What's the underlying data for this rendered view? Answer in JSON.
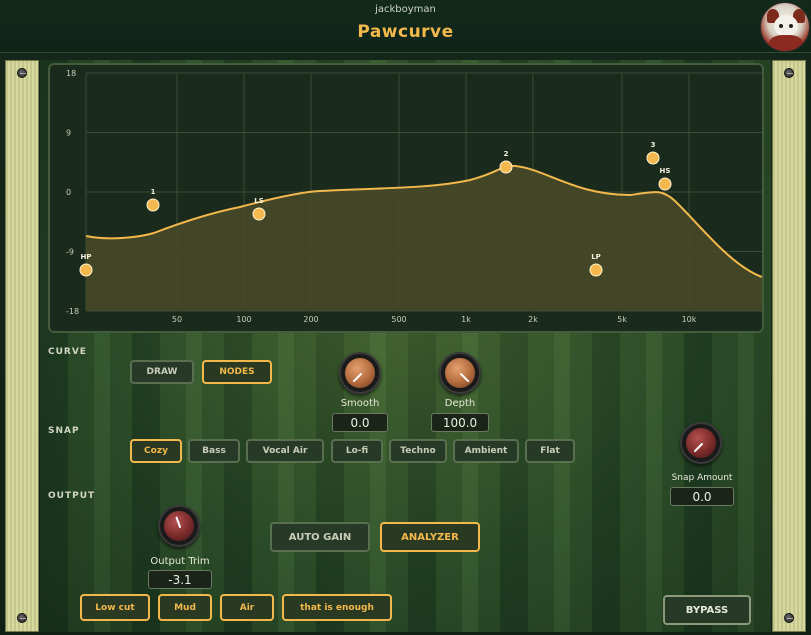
{
  "header": {
    "brand": "jackboyman",
    "title": "Pawcurve"
  },
  "eq": {
    "y_ticks": [
      "18",
      "9",
      "0",
      "-9",
      "-18"
    ],
    "x_ticks": [
      "50",
      "100",
      "200",
      "500",
      "1k",
      "2k",
      "5k",
      "10k"
    ],
    "nodes": [
      {
        "label": "HP"
      },
      {
        "label": "1"
      },
      {
        "label": "LS"
      },
      {
        "label": "2"
      },
      {
        "label": "LP"
      },
      {
        "label": "3"
      },
      {
        "label": "HS"
      }
    ],
    "colors": {
      "curve": "#f2b84b",
      "fill": "#4a4a28",
      "node": "#f5b84e"
    }
  },
  "sections": {
    "curve": "CURVE",
    "snap": "SNAP",
    "output": "OUTPUT"
  },
  "curve_mode": {
    "draw": "DRAW",
    "nodes": "NODES"
  },
  "smooth": {
    "label": "Smooth",
    "value": "0.0"
  },
  "depth": {
    "label": "Depth",
    "value": "100.0"
  },
  "snap_presets": [
    "Cozy",
    "Bass",
    "Vocal Air",
    "Lo-fi",
    "Techno",
    "Ambient",
    "Flat"
  ],
  "snap_amount": {
    "label": "Snap Amount",
    "value": "0.0"
  },
  "output_trim": {
    "label": "Output Trim",
    "value": "-3.1"
  },
  "toggles": {
    "auto_gain": "AUTO GAIN",
    "analyzer": "ANALYZER"
  },
  "quick_fixes": [
    "Low cut",
    "Mud",
    "Air",
    "that is enough"
  ],
  "bypass": "BYPASS"
}
